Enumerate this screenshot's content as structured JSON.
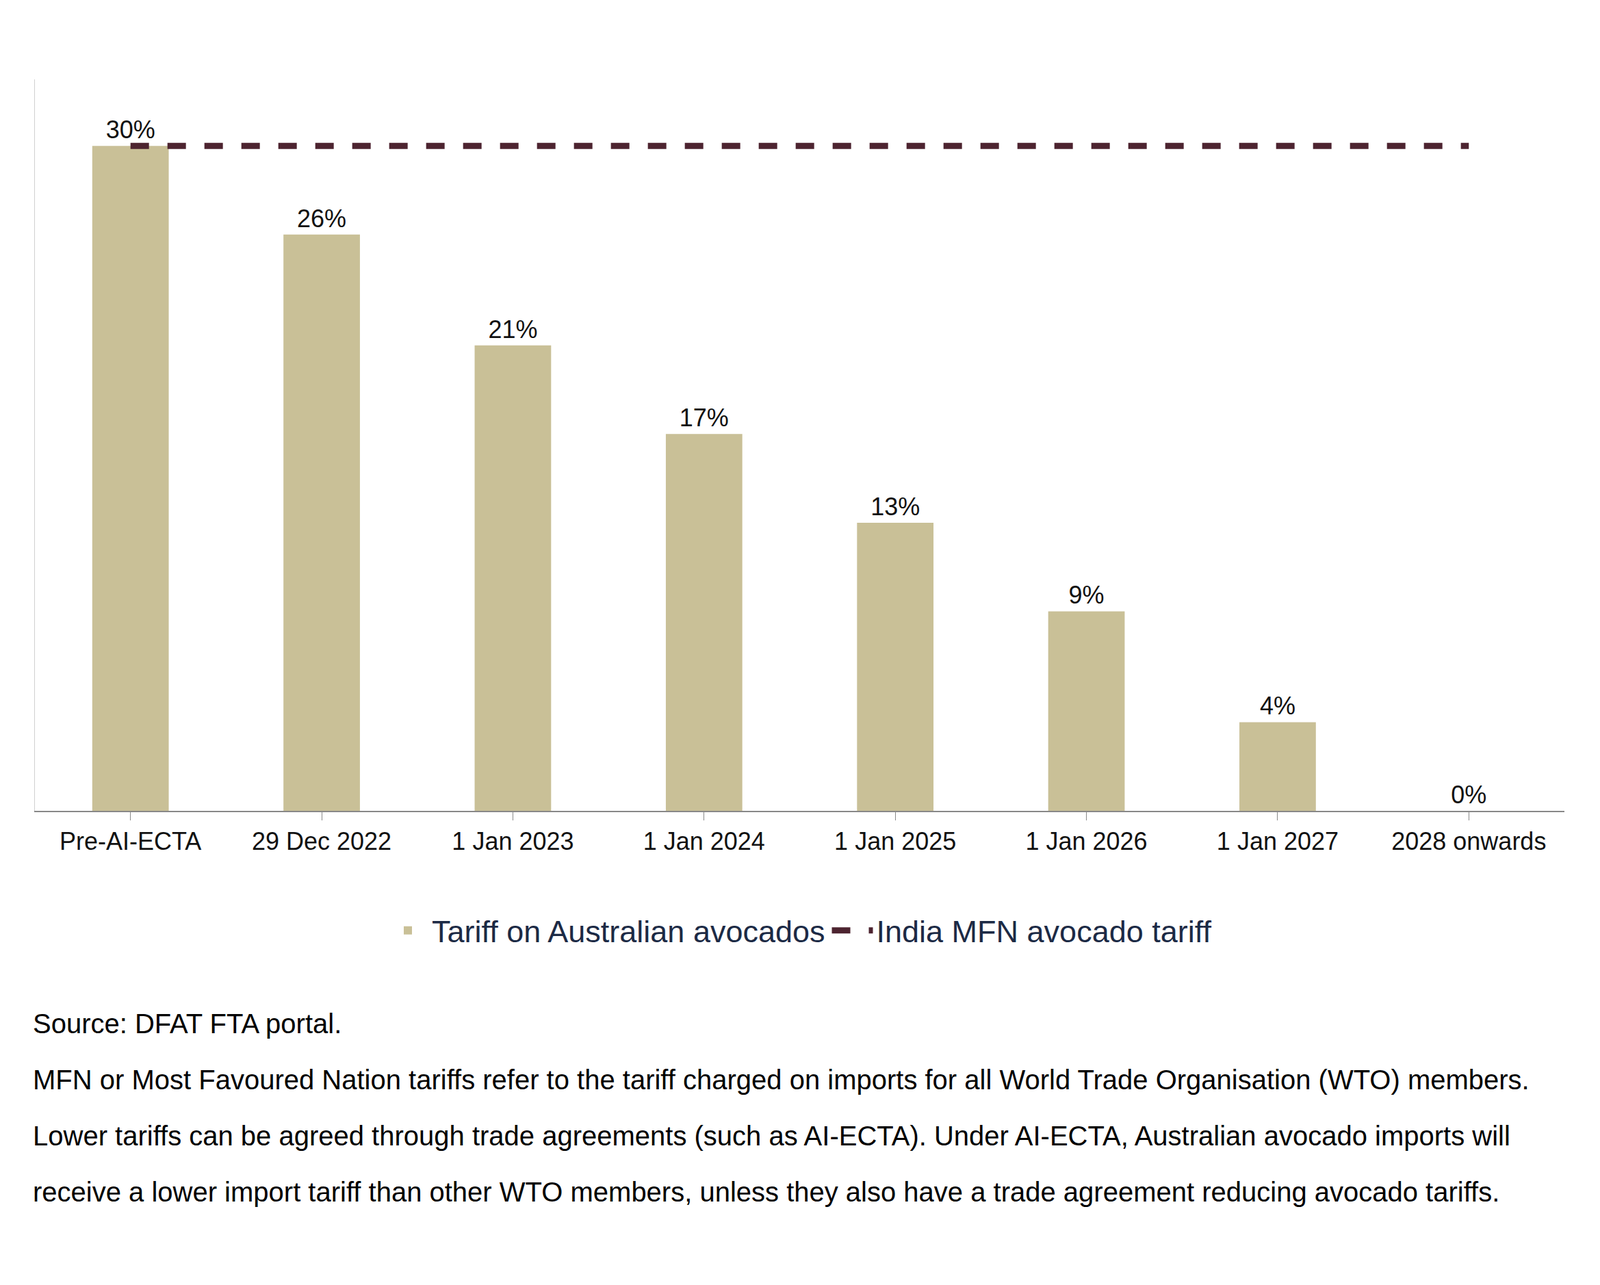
{
  "chart_data": {
    "type": "bar",
    "categories": [
      "Pre-AI-ECTA",
      "29 Dec 2022",
      "1 Jan 2023",
      "1 Jan 2024",
      "1 Jan 2025",
      "1 Jan 2026",
      "1 Jan 2027",
      "2028 onwards"
    ],
    "series": [
      {
        "name": "Tariff on Australian avocados",
        "type": "bar",
        "color": "#c9c097",
        "values": [
          30,
          26,
          21,
          17,
          13,
          9,
          4,
          0
        ],
        "value_labels": [
          "30%",
          "26%",
          "21%",
          "17%",
          "13%",
          "9%",
          "4%",
          "0%"
        ]
      },
      {
        "name": "India MFN avocado tariff",
        "type": "line",
        "line_style": "dash",
        "color": "#4d2430",
        "values": [
          30,
          30,
          30,
          30,
          30,
          30,
          30,
          30
        ]
      }
    ],
    "ylim": [
      0,
      33
    ],
    "yticks": [],
    "grid": false,
    "legend": "bottom",
    "data_labels": true,
    "tick_labels": "x",
    "notes": [
      "Source: DFAT FTA portal.",
      "MFN or Most Favoured Nation tariffs refer to the tariff charged on imports for all World Trade Organisation (WTO) members. Lower tariffs can be agreed through trade agreements (such as AI-ECTA). Under AI-ECTA, Australian avocado imports will receive a lower import tariff than other WTO members, unless they also have a trade agreement reducing avocado tariffs."
    ]
  }
}
